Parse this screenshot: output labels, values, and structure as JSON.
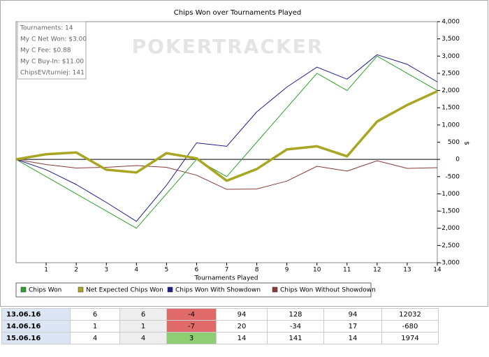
{
  "chart_data": {
    "type": "line",
    "title": "Chips Won over Tournaments Played",
    "x_label": "Tournaments Played",
    "y_label": "$",
    "watermark": "POKERTRACKER",
    "info": [
      "Tournaments: 14",
      "My C Net Won: $3.00",
      "My C Fee: $0.88",
      "My C Buy-In: $11.00",
      "ChipsEV/turniej: 141"
    ],
    "x": [
      0,
      1,
      2,
      3,
      4,
      5,
      6,
      7,
      8,
      9,
      10,
      11,
      12,
      13,
      14
    ],
    "xlim": [
      0,
      14
    ],
    "xticks": [
      1,
      2,
      3,
      4,
      5,
      6,
      7,
      8,
      9,
      10,
      11,
      12,
      13,
      14
    ],
    "ylim": [
      -3000,
      4000
    ],
    "yticks": [
      {
        "value": -3000,
        "label": "-3,000"
      },
      {
        "value": -2500,
        "label": "-2,500"
      },
      {
        "value": -2000,
        "label": "-2,000"
      },
      {
        "value": -1500,
        "label": "-1,500"
      },
      {
        "value": -1000,
        "label": "-1,000"
      },
      -500,
      0,
      500,
      {
        "value": 1000,
        "label": "1,000"
      },
      {
        "value": 1500,
        "label": "1,500"
      },
      {
        "value": 2000,
        "label": "2,000"
      },
      {
        "value": 2500,
        "label": "2,500"
      },
      {
        "value": 3000,
        "label": "3,000"
      },
      {
        "value": 3500,
        "label": "3,500"
      },
      {
        "value": 4000,
        "label": "4,000"
      }
    ],
    "series": [
      {
        "name": "Chips Won",
        "color": "#2ca02c",
        "width": 1,
        "values": [
          0,
          -500,
          -1000,
          -1500,
          -2000,
          -1000,
          0,
          -500,
          500,
          1500,
          2500,
          2000,
          3000,
          2500,
          2000
        ]
      },
      {
        "name": "Net Expected Chips Won",
        "color": "#a8a622",
        "width": 3.5,
        "values": [
          0,
          150,
          200,
          -300,
          -380,
          180,
          30,
          -620,
          -280,
          290,
          380,
          90,
          1100,
          1580,
          1980
        ]
      },
      {
        "name": "Chips Won With Showdown",
        "color": "#1f1f8c",
        "width": 1,
        "values": [
          0,
          -300,
          -730,
          -1250,
          -1800,
          -750,
          480,
          380,
          1380,
          2100,
          2680,
          2330,
          3040,
          2760,
          2250
        ]
      },
      {
        "name": "Chips Won Without Showdown",
        "color": "#8b3a3a",
        "width": 1,
        "values": [
          0,
          -150,
          -250,
          -230,
          -180,
          -230,
          -460,
          -870,
          -860,
          -630,
          -200,
          -340,
          -40,
          -260,
          -240
        ]
      }
    ]
  },
  "table": {
    "rows": [
      [
        "13.06.16",
        6,
        6,
        -4,
        94,
        128,
        94,
        12032
      ],
      [
        "14.06.16",
        1,
        1,
        -7,
        20,
        -34,
        17,
        -680
      ],
      [
        "15.06.16",
        4,
        4,
        3,
        14,
        141,
        14,
        1974
      ]
    ]
  }
}
